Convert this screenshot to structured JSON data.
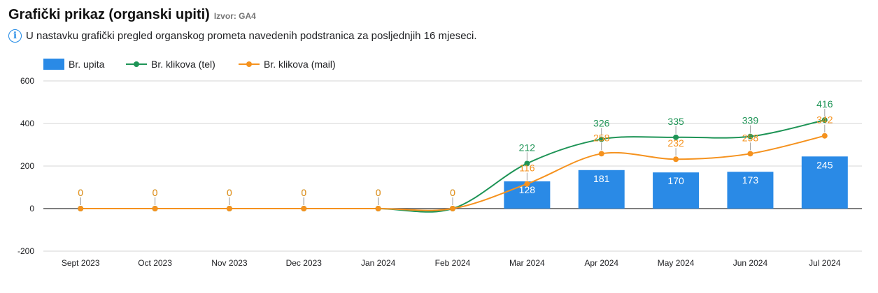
{
  "header": {
    "title": "Grafički prikaz (organski upiti)",
    "source": "Izvor: GA4",
    "info_icon": "info-icon",
    "info_text": "U nastavku grafički pregled organskog prometa navedenih podstranica za posljednjih 16 mjeseci."
  },
  "chart_data": {
    "type": "bar",
    "categories": [
      "Sept 2023",
      "Oct 2023",
      "Nov 2023",
      "Dec 2023",
      "Jan 2024",
      "Feb 2024",
      "Mar 2024",
      "Apr 2024",
      "May 2024",
      "Jun 2024",
      "Jul 2024"
    ],
    "series": [
      {
        "name": "Br. upita",
        "type": "bar",
        "color": "#2a8ae6",
        "values": [
          null,
          null,
          null,
          null,
          null,
          null,
          128,
          181,
          170,
          173,
          245
        ]
      },
      {
        "name": "Br. klikova (tel)",
        "type": "line",
        "color": "#1e9456",
        "values": [
          0,
          0,
          0,
          0,
          0,
          0,
          212,
          326,
          335,
          339,
          416
        ]
      },
      {
        "name": "Br. klikova (mail)",
        "type": "line",
        "color": "#f5921e",
        "values": [
          0,
          0,
          0,
          0,
          0,
          0,
          116,
          258,
          232,
          258,
          342
        ]
      }
    ],
    "yticks": [
      -200,
      0,
      200,
      400,
      600
    ],
    "ylim": [
      -200,
      600
    ],
    "title": "",
    "xlabel": "",
    "ylabel": "",
    "grid": true,
    "legend_position": "top-left"
  }
}
